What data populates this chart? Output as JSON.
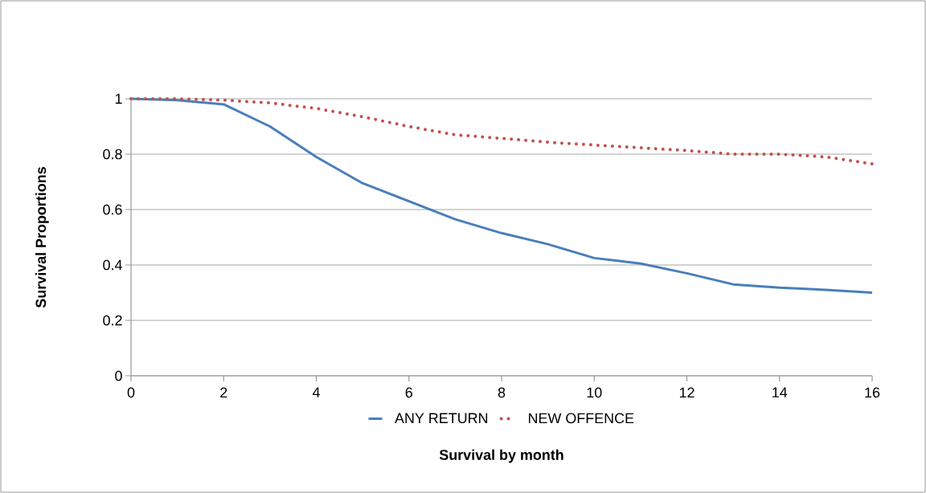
{
  "chart_data": {
    "type": "line",
    "xlabel": "Survival by month",
    "ylabel": "Survival Proportions",
    "x": [
      0,
      1,
      2,
      3,
      4,
      5,
      6,
      7,
      8,
      9,
      10,
      11,
      12,
      13,
      14,
      15,
      16
    ],
    "series": [
      {
        "name": "ANY RETURN",
        "color": "#4a7ebb",
        "line_style": "solid",
        "values": [
          1.0,
          0.995,
          0.98,
          0.9,
          0.79,
          0.695,
          0.63,
          0.565,
          0.515,
          0.475,
          0.425,
          0.405,
          0.37,
          0.33,
          0.318,
          0.31,
          0.3
        ]
      },
      {
        "name": "NEW OFFENCE",
        "color": "#c0504d",
        "line_style": "dotted",
        "values": [
          1.0,
          1.0,
          0.995,
          0.985,
          0.965,
          0.935,
          0.9,
          0.87,
          0.857,
          0.843,
          0.833,
          0.823,
          0.813,
          0.8,
          0.8,
          0.79,
          0.765
        ]
      }
    ],
    "xlim": [
      0,
      16
    ],
    "xticks": [
      0,
      2,
      4,
      6,
      8,
      10,
      12,
      14,
      16
    ],
    "ylim": [
      0,
      1
    ],
    "yticks": [
      0,
      0.2,
      0.4,
      0.6,
      0.8,
      1
    ],
    "grid": "y",
    "legend": "bottom",
    "marker": "none"
  }
}
